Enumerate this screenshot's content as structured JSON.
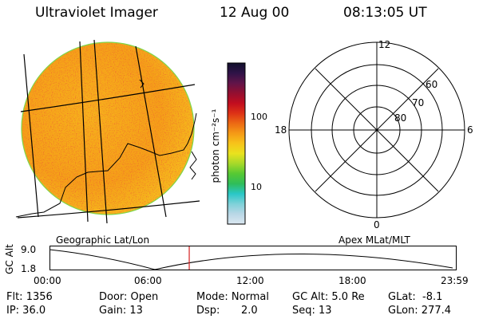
{
  "header": {
    "title": "Ultraviolet Imager",
    "date": "12 Aug 00",
    "time": "08:13:05 UT"
  },
  "colorbar": {
    "unit_label": "photon cm⁻²s⁻¹",
    "ticks": [
      "100",
      "10"
    ],
    "colors": [
      "#dbe7f0",
      "#b9d7e6",
      "#7fd1d9",
      "#2ac7c7",
      "#2fbd5a",
      "#56c933",
      "#a6d92a",
      "#e9e21e",
      "#f7c41a",
      "#f59a16",
      "#ec6a14",
      "#dd3216",
      "#c20d1f",
      "#930f30",
      "#611449",
      "#2e1347",
      "#11102c"
    ]
  },
  "left_panel": {
    "caption": "Geographic Lat/Lon"
  },
  "right_panel": {
    "caption": "Apex MLat/MLT",
    "mlt_labels": {
      "top": "12",
      "left": "18",
      "right": "6",
      "bottom": "0"
    },
    "lat_labels": [
      "60",
      "70",
      "80"
    ]
  },
  "timeline": {
    "axis_label": "GC Alt",
    "y_ticks": [
      "9.0",
      "1.8"
    ],
    "x_ticks": [
      "00:00",
      "06:00",
      "12:00",
      "18:00",
      "23:59"
    ],
    "current_time_fraction": 0.3426
  },
  "status": {
    "flt": "Flt: 1356",
    "ip": "IP: 36.0",
    "door": "Door: Open",
    "gain": "Gain: 13",
    "mode": "Mode: Normal",
    "dsp_label": "Dsp:",
    "dsp_value": "2.0",
    "gc_alt": "GC Alt: 5.0 Re",
    "seq": "Seq: 13",
    "glat": "GLat:  -8.1",
    "glon": "GLon: 277.4"
  }
}
